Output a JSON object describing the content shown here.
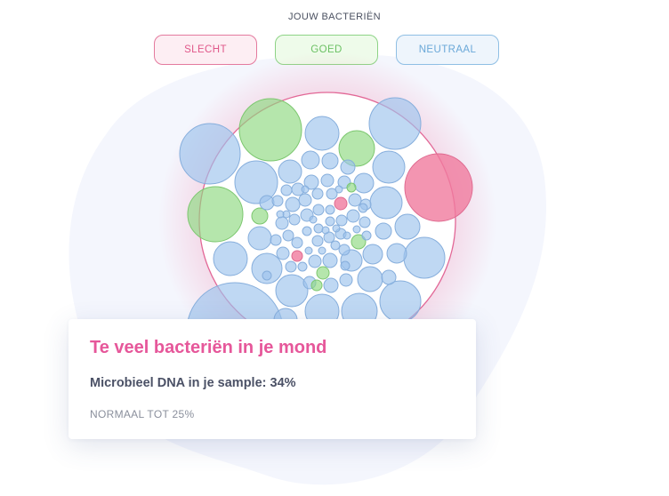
{
  "legend": {
    "title": "JOUW BACTERIËN",
    "items": [
      {
        "key": "bad",
        "label": "SLECHT",
        "color": "#f07a9e"
      },
      {
        "key": "good",
        "label": "GOED",
        "color": "#8ed97f"
      },
      {
        "key": "neutral",
        "label": "NEUTRAAL",
        "color": "#9cc3ec"
      }
    ]
  },
  "card": {
    "title": "Te veel bacteriën in je mond",
    "metric": "Microbieel DNA in je sample: 34%",
    "norm": "NORMAAL TOT 25%"
  },
  "chart_data": {
    "type": "bubble-pack",
    "sample_dna_percent": 34,
    "normal_max_percent": 25,
    "categories": [
      "bad",
      "good",
      "neutral"
    ]
  }
}
